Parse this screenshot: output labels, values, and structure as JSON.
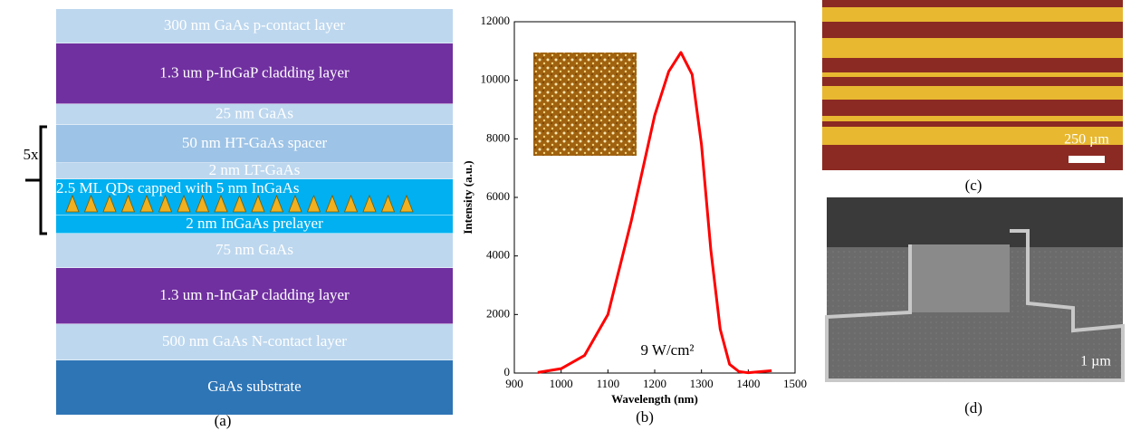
{
  "layers": [
    {
      "label": "300 nm GaAs p-contact layer",
      "color": "#bdd7ee"
    },
    {
      "label": "1.3  um p-InGaP cladding layer",
      "color": "#7030a0"
    },
    {
      "label": "25 nm GaAs",
      "color": "#bdd7ee"
    },
    {
      "label": "50 nm HT-GaAs spacer",
      "color": "#9dc3e6"
    },
    {
      "label": "2 nm LT-GaAs",
      "color": "#bdd7ee"
    },
    {
      "label": "2.5 ML QDs capped with 5 nm InGaAs",
      "color": "#00b0f0"
    },
    {
      "label": "2 nm InGaAs  prelayer",
      "color": "#00b0f0"
    },
    {
      "label": "75 nm GaAs",
      "color": "#bdd7ee"
    },
    {
      "label": "1.3  um n-InGaP cladding layer",
      "color": "#7030a0"
    },
    {
      "label": "500 nm GaAs N-contact layer",
      "color": "#bdd7ee"
    },
    {
      "label": "GaAs  substrate",
      "color": "#2e75b6"
    }
  ],
  "repeat_label": "5x",
  "caption_a": "(a)",
  "chart_data": {
    "type": "line",
    "x_label": "Wavelength (nm)",
    "y_label": "Intensity (a.u.)",
    "annotation": "9 W/cm²",
    "caption": "(b)",
    "color": "#ff0000",
    "x": [
      950,
      1000,
      1050,
      1100,
      1150,
      1200,
      1230,
      1256,
      1280,
      1300,
      1320,
      1340,
      1360,
      1380,
      1400,
      1450
    ],
    "values": [
      20,
      150,
      600,
      2000,
      5200,
      8800,
      10300,
      10950,
      10200,
      7800,
      4200,
      1500,
      300,
      50,
      10,
      80
    ],
    "xlim": [
      900,
      1500
    ],
    "xticks": [
      900,
      1000,
      1100,
      1200,
      1300,
      1400,
      1500
    ],
    "ylim": [
      0,
      12000
    ],
    "yticks": [
      0,
      2000,
      4000,
      6000,
      8000,
      10000,
      12000
    ]
  },
  "panel_c": {
    "scale": "250 µm",
    "caption": "(c)"
  },
  "panel_d": {
    "scale": "1 µm",
    "caption": "(d)"
  }
}
